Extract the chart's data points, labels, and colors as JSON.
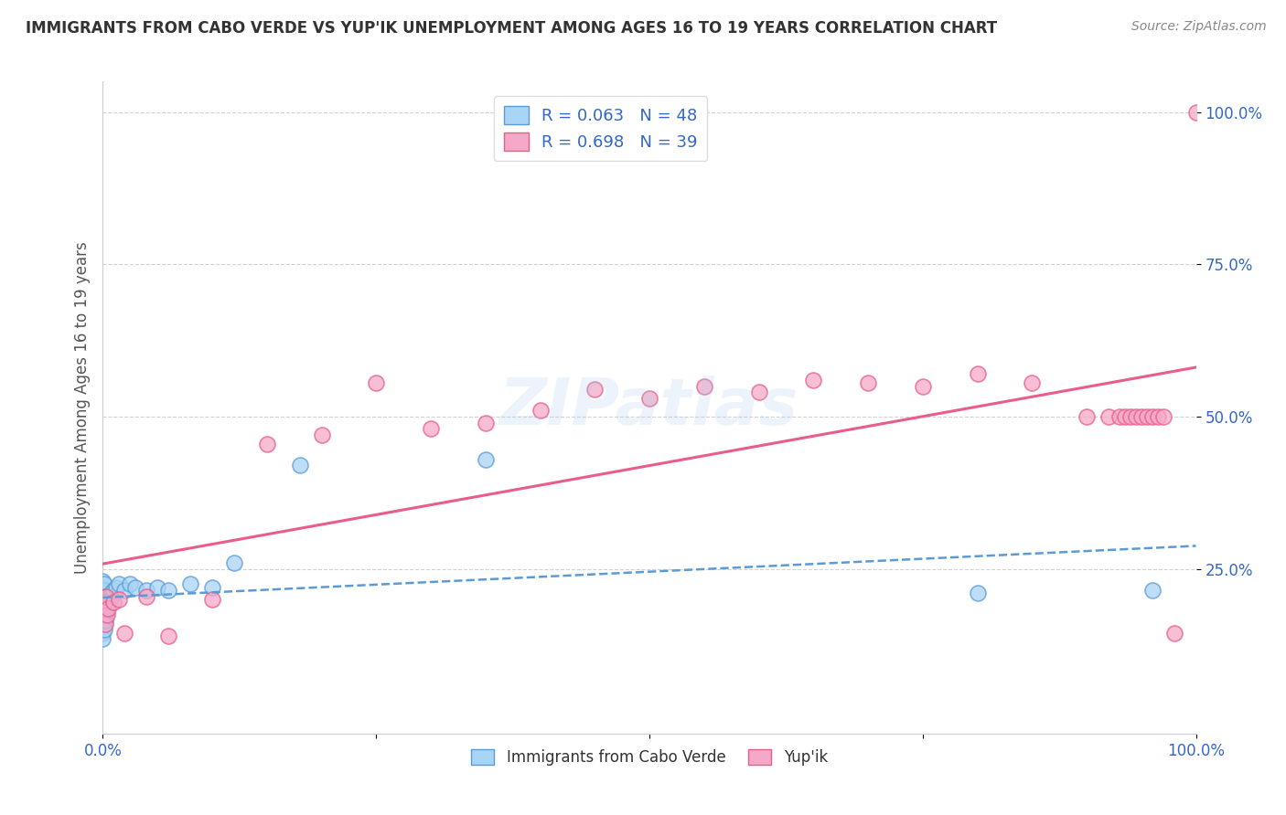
{
  "title": "IMMIGRANTS FROM CABO VERDE VS YUP'IK UNEMPLOYMENT AMONG AGES 16 TO 19 YEARS CORRELATION CHART",
  "source": "Source: ZipAtlas.com",
  "ylabel": "Unemployment Among Ages 16 to 19 years",
  "xlim": [
    0,
    1.0
  ],
  "ylim": [
    -0.02,
    1.05
  ],
  "y_ticks": [
    0.25,
    0.5,
    0.75,
    1.0
  ],
  "y_tick_labels": [
    "25.0%",
    "50.0%",
    "75.0%",
    "100.0%"
  ],
  "legend1_label": "R = 0.063   N = 48",
  "legend2_label": "R = 0.698   N = 39",
  "color_blue": "#a8d4f5",
  "color_pink": "#f5a8c8",
  "line_blue": "#5b9bd5",
  "line_pink": "#e85d8a",
  "cabo_verde_x": [
    0.0,
    0.0,
    0.0,
    0.0,
    0.0,
    0.0,
    0.0,
    0.0,
    0.0,
    0.0,
    0.001,
    0.001,
    0.001,
    0.001,
    0.001,
    0.001,
    0.001,
    0.002,
    0.002,
    0.002,
    0.002,
    0.002,
    0.003,
    0.003,
    0.003,
    0.004,
    0.004,
    0.005,
    0.005,
    0.006,
    0.007,
    0.008,
    0.01,
    0.012,
    0.015,
    0.02,
    0.025,
    0.03,
    0.04,
    0.05,
    0.06,
    0.08,
    0.1,
    0.12,
    0.18,
    0.35,
    0.8,
    0.96
  ],
  "cabo_verde_y": [
    0.2,
    0.21,
    0.22,
    0.23,
    0.195,
    0.18,
    0.165,
    0.155,
    0.145,
    0.135,
    0.2,
    0.215,
    0.225,
    0.19,
    0.175,
    0.16,
    0.15,
    0.205,
    0.195,
    0.185,
    0.175,
    0.165,
    0.2,
    0.19,
    0.18,
    0.205,
    0.195,
    0.2,
    0.19,
    0.2,
    0.205,
    0.21,
    0.215,
    0.22,
    0.225,
    0.215,
    0.225,
    0.22,
    0.215,
    0.22,
    0.215,
    0.225,
    0.22,
    0.26,
    0.42,
    0.43,
    0.21,
    0.215
  ],
  "yupik_x": [
    0.001,
    0.002,
    0.003,
    0.004,
    0.005,
    0.01,
    0.015,
    0.02,
    0.04,
    0.06,
    0.1,
    0.15,
    0.2,
    0.25,
    0.3,
    0.35,
    0.4,
    0.45,
    0.5,
    0.55,
    0.6,
    0.65,
    0.7,
    0.75,
    0.8,
    0.85,
    0.9,
    0.92,
    0.93,
    0.935,
    0.94,
    0.945,
    0.95,
    0.955,
    0.96,
    0.965,
    0.97,
    0.98,
    1.0
  ],
  "yupik_y": [
    0.195,
    0.16,
    0.205,
    0.175,
    0.185,
    0.195,
    0.2,
    0.145,
    0.205,
    0.14,
    0.2,
    0.455,
    0.47,
    0.555,
    0.48,
    0.49,
    0.51,
    0.545,
    0.53,
    0.55,
    0.54,
    0.56,
    0.555,
    0.55,
    0.57,
    0.555,
    0.5,
    0.5,
    0.5,
    0.5,
    0.5,
    0.5,
    0.5,
    0.5,
    0.5,
    0.5,
    0.5,
    0.145,
    1.0
  ],
  "background_color": "#ffffff",
  "watermark": "ZIPatlas",
  "figsize": [
    14.06,
    8.92
  ],
  "dpi": 100
}
